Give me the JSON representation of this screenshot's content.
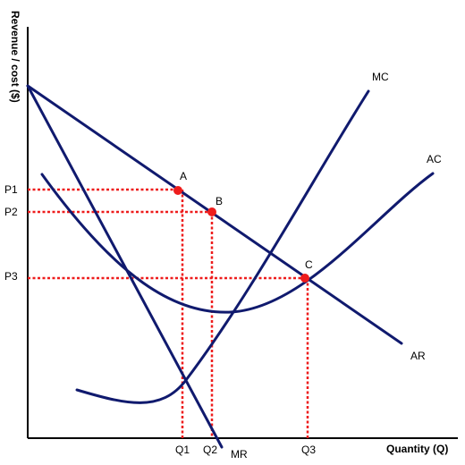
{
  "colors": {
    "curve": "#101a6e",
    "guide": "#ee1c1c",
    "point": "#ee1c1c",
    "axis": "#000000",
    "text": "#000000"
  },
  "axes": {
    "y_label": "Revenue / cost ($)",
    "x_label": "Quantity (Q)"
  },
  "price_labels": {
    "p1": "P1",
    "p2": "P2",
    "p3": "P3"
  },
  "quantity_labels": {
    "q1": "Q1",
    "q2": "Q2",
    "q3": "Q3"
  },
  "curve_labels": {
    "mc": "MC",
    "ac": "AC",
    "ar": "AR",
    "mr": "MR"
  },
  "point_labels": {
    "a": "A",
    "b": "B",
    "c": "C"
  }
}
